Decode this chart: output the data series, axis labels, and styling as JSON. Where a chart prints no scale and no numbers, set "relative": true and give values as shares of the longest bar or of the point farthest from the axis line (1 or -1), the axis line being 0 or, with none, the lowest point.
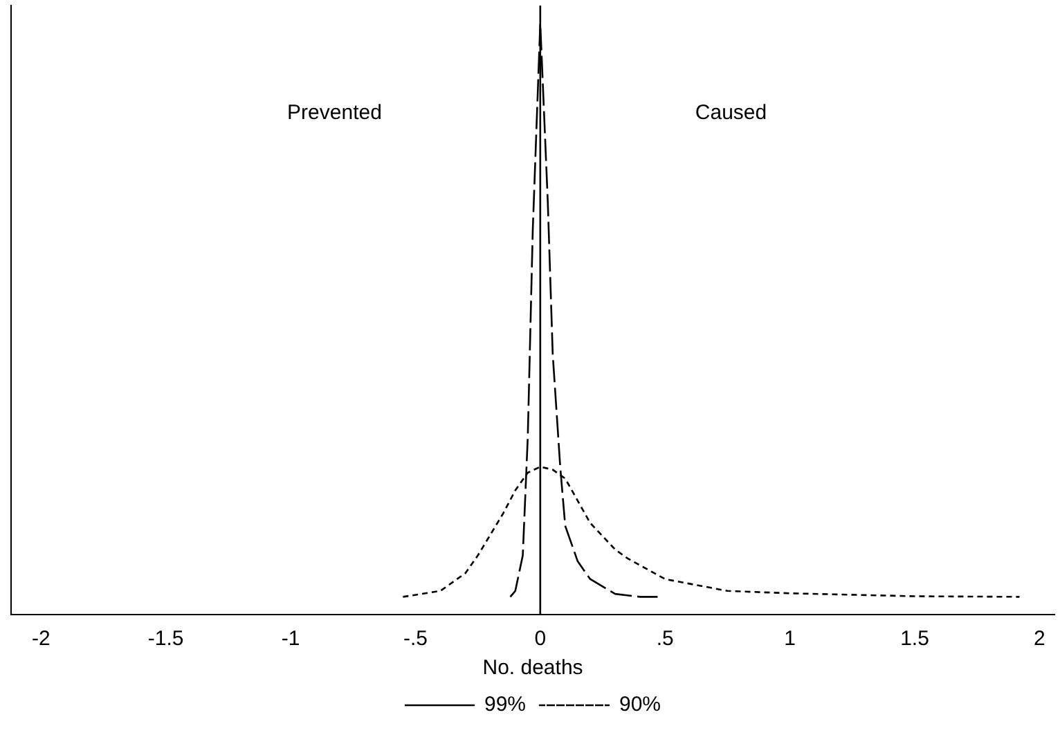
{
  "chart_data": {
    "type": "line",
    "relative": true,
    "xlabel": "No. deaths",
    "xlim": [
      -2.12,
      2.06
    ],
    "xticks": [
      -2,
      {
        "value": -1.5,
        "label": "-1.5"
      },
      -1,
      {
        "value": -0.5,
        "label": "-.5"
      },
      0,
      {
        "value": 0.5,
        "label": ".5"
      },
      1,
      {
        "value": 1.5,
        "label": "1.5"
      },
      2
    ],
    "series": [
      {
        "name": "99%",
        "color": "#000000",
        "line_style": "dashed",
        "x": [
          -0.12,
          -0.1,
          -0.07,
          -0.05,
          -0.03,
          0,
          0.03,
          0.05,
          0.08,
          0.1,
          0.15,
          0.2,
          0.3,
          0.4,
          0.47
        ],
        "values": [
          0.03,
          0.04,
          0.1,
          0.3,
          0.65,
          1,
          0.7,
          0.44,
          0.25,
          0.15,
          0.09,
          0.06,
          0.035,
          0.03,
          0.03
        ]
      },
      {
        "name": "90%",
        "color": "#000000",
        "line_style": "dotted",
        "x": [
          -0.55,
          -0.4,
          -0.3,
          -0.25,
          -0.15,
          -0.1,
          -0.05,
          0,
          0.05,
          0.1,
          0.2,
          0.3,
          0.35,
          0.5,
          0.75,
          1,
          1.5,
          1.92
        ],
        "values": [
          0.03,
          0.04,
          0.07,
          0.1,
          0.17,
          0.21,
          0.24,
          0.25,
          0.245,
          0.23,
          0.155,
          0.11,
          0.095,
          0.06,
          0.04,
          0.036,
          0.031,
          0.03
        ]
      }
    ],
    "ref_lines": [
      {
        "axis": "x",
        "value": 0,
        "color": "#000000"
      }
    ],
    "annotations": [
      "Prevented",
      "Caused"
    ],
    "legend": "bottom",
    "grid": false,
    "marker": "none"
  }
}
